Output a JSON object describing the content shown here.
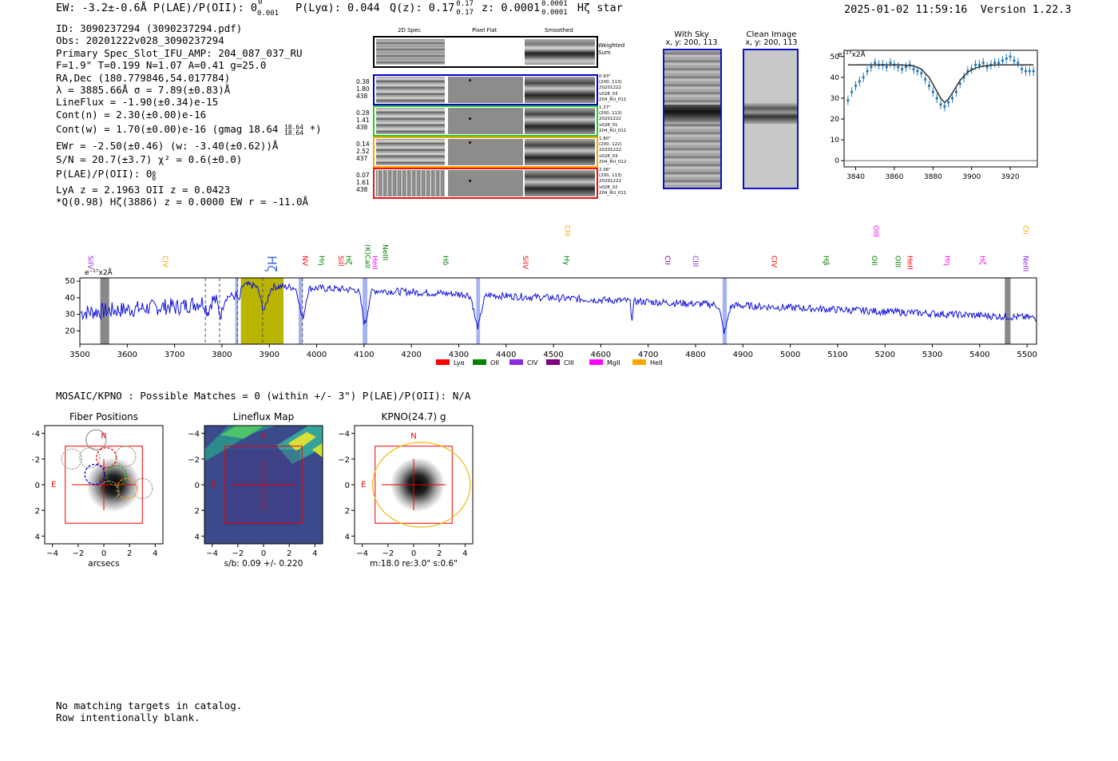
{
  "header": {
    "left_text": "EW: -3.2±-0.6Å  P(LAE)/P(OII): 0",
    "plae_sub": "0.001",
    "plae_sup": "0",
    "plya": "P(Lyα): 0.044",
    "qz": "Q(z): 0.17",
    "qz_sup": "0.17",
    "qz_sub": "0.17",
    "z": "z: 0.0001",
    "z_sup": "0.0001",
    "z_sub": "0.0001",
    "line_name": "Hζ  star",
    "timestamp": "2025-01-02 11:59:16",
    "version": "Version 1.22.3"
  },
  "info": {
    "lines": [
      "ID: 3090237294 (3090237294.pdf)",
      "Obs: 20201222v028_3090237294",
      "Primary Spec_Slot_IFU_AMP: 204_087_037_RU",
      "F=1.9\"  T=0.199  N=1.07  A=0.41  g=25.0",
      "RA,Dec (180.779846,54.017784)",
      "λ = 3885.66Å  σ = 7.89(±0.83)Å",
      "LineFlux = -1.90(±0.34)e-15",
      "Cont(n) = 2.30(±0.00)e-16",
      "Cont(w) = 1.70(±0.00)e-16 (gmag 18.64 ",
      "EWr = -2.50(±0.46) (w: -3.40(±0.62))Å",
      "S/N = 20.7(±3.7)  χ² = 0.6(±0.0)",
      "P(LAE)/P(OII): 0",
      "LyA z = 2.1963  OII z = 0.0423",
      "*Q(0.98) Hζ(3886) z = 0.0000  EW r = -11.0Å"
    ],
    "gmag_sup": "18.64",
    "gmag_sub": "18.64",
    "gmag_tail": " *)",
    "plae_sup": "0",
    "plae_sub": "0"
  },
  "cutouts": {
    "col_headers": [
      "2D Spec",
      "Pixel Flat",
      "Smoothed"
    ],
    "weighted_label": "Weighted Sum",
    "rows": [
      {
        "left": [
          "0.38",
          "1.80",
          "438"
        ],
        "right": [
          "0.93\"",
          "(200, 113)",
          "20201222",
          "v028_03",
          "204_RU_011"
        ],
        "color": "#0000cc"
      },
      {
        "left": [
          "0.28",
          "1.41",
          "438"
        ],
        "right": [
          "1.27\"",
          "(200, 113)",
          "20201222",
          "v028_01",
          "204_RU_011"
        ],
        "color": "#22cc22"
      },
      {
        "left": [
          "0.14",
          "2.52",
          "437"
        ],
        "right": [
          "1.80\"",
          "(200, 122)",
          "20201222",
          "v028_03",
          "204_RU_012"
        ],
        "color": "#ffa500"
      },
      {
        "left": [
          "0.07",
          "1.61",
          "438"
        ],
        "right": [
          "2.06\"",
          "(200, 113)",
          "20201222",
          "v028_02",
          "204_RU_011"
        ],
        "color": "#ee1111"
      }
    ]
  },
  "sky_panels": [
    {
      "title": "With Sky",
      "subtitle": "x, y: 200, 113"
    },
    {
      "title": "Clean Image",
      "subtitle": "x, y: 200, 113"
    }
  ],
  "zoom_chart": {
    "type": "scatter",
    "ylabel": "e⁻¹⁷x2Å",
    "xlim": [
      3834,
      3934
    ],
    "ylim": [
      -3,
      53
    ],
    "xticks": [
      "3840",
      "3860",
      "3880",
      "3900",
      "3920"
    ],
    "yticks": [
      "0",
      "10",
      "20",
      "30",
      "40",
      "50"
    ],
    "x": [
      3836,
      3838,
      3840,
      3842,
      3844,
      3846,
      3848,
      3850,
      3852,
      3854,
      3856,
      3858,
      3860,
      3862,
      3864,
      3866,
      3868,
      3870,
      3872,
      3874,
      3876,
      3878,
      3880,
      3882,
      3884,
      3886,
      3888,
      3890,
      3892,
      3894,
      3896,
      3898,
      3900,
      3902,
      3904,
      3906,
      3908,
      3910,
      3912,
      3914,
      3916,
      3918,
      3920,
      3922,
      3924,
      3926,
      3928,
      3930,
      3932
    ],
    "y": [
      29,
      33,
      36,
      38,
      40,
      43,
      45,
      47,
      46,
      46,
      45,
      47,
      46,
      45,
      44,
      45,
      46,
      44,
      43,
      42,
      39,
      36,
      33,
      30,
      27,
      26,
      28,
      30,
      33,
      37,
      40,
      43,
      44,
      46,
      46,
      47,
      45,
      46,
      47,
      47,
      48,
      49,
      50,
      48,
      47,
      44,
      43,
      43,
      43
    ],
    "fit_x": [
      3836,
      3846,
      3856,
      3864,
      3870,
      3874,
      3878,
      3881,
      3884,
      3886,
      3888,
      3891,
      3894,
      3898,
      3902,
      3906,
      3912,
      3920,
      3932
    ],
    "fit_y": [
      46,
      46,
      46,
      46,
      45.5,
      44,
      40,
      35,
      30,
      28,
      29.5,
      34,
      38.5,
      42.5,
      44.5,
      45.5,
      46,
      46,
      46
    ]
  },
  "spectrum_chart": {
    "type": "line",
    "ylabel": "e⁻¹⁷x2Å",
    "xlim": [
      3500,
      5520
    ],
    "ylim": [
      12,
      52
    ],
    "xticks": [
      "3500",
      "3600",
      "3700",
      "3800",
      "3900",
      "4000",
      "4100",
      "4200",
      "4300",
      "4400",
      "4500",
      "4600",
      "4700",
      "4800",
      "4900",
      "5000",
      "5100",
      "5200",
      "5300",
      "5400",
      "5500"
    ],
    "yticks": [
      "20",
      "30",
      "40",
      "50"
    ],
    "legend": [
      {
        "label": "Lyα",
        "color": "#ff0000"
      },
      {
        "label": "OII",
        "color": "#008000"
      },
      {
        "label": "CIV",
        "color": "#8a2be2"
      },
      {
        "label": "CIII",
        "color": "#800080"
      },
      {
        "label": "MgII",
        "color": "#ff00ff"
      },
      {
        "label": "HeII",
        "color": "#ffa500"
      }
    ],
    "lines": [
      {
        "label": "SiIV",
        "wave": 3513,
        "color": "#8a2be2",
        "level": 0
      },
      {
        "label": "CIV",
        "wave": 3670,
        "color": "#ffa500",
        "level": 0
      },
      {
        "label": "Hζ",
        "wave": 3886,
        "color": "#4169e1",
        "level": 2
      },
      {
        "label": "NV",
        "wave": 3965,
        "color": "#ff0000",
        "level": 0
      },
      {
        "label": "Hη",
        "wave": 4001,
        "color": "#008000",
        "level": 0
      },
      {
        "label": "SiII",
        "wave": 4041,
        "color": "#ff0000",
        "level": 0
      },
      {
        "label": "Hζ",
        "wave": 4057,
        "color": "#008000",
        "level": 0
      },
      {
        "label": "(K)CaII",
        "wave": 4098,
        "color": "#008000",
        "level": 1
      },
      {
        "label": "HeII",
        "wave": 4113,
        "color": "#ff00ff",
        "level": 0
      },
      {
        "label": "NeIII",
        "wave": 4135,
        "color": "#008000",
        "level": 1
      },
      {
        "label": "Hδ",
        "wave": 4262,
        "color": "#008000",
        "level": 0
      },
      {
        "label": "SiIV",
        "wave": 4431,
        "color": "#ff0000",
        "level": 0
      },
      {
        "label": "CIII",
        "wave": 4519,
        "color": "#ffa500",
        "level": 3
      },
      {
        "label": "Hγ",
        "wave": 4518,
        "color": "#008000",
        "level": 0
      },
      {
        "label": "CII",
        "wave": 4731,
        "color": "#800080",
        "level": 0
      },
      {
        "label": "CIII",
        "wave": 4790,
        "color": "#8a2be2",
        "level": 0
      },
      {
        "label": "CIV",
        "wave": 4956,
        "color": "#ff0000",
        "level": 0
      },
      {
        "label": "Hβ",
        "wave": 5066,
        "color": "#008000",
        "level": 0
      },
      {
        "label": "OIII",
        "wave": 5171,
        "color": "#ff00ff",
        "level": 3
      },
      {
        "label": "OII",
        "wave": 5168,
        "color": "#008000",
        "level": 0
      },
      {
        "label": "OIII",
        "wave": 5217,
        "color": "#008000",
        "level": 0
      },
      {
        "label": "HeII",
        "wave": 5243,
        "color": "#ff0000",
        "level": 0
      },
      {
        "label": "Hη",
        "wave": 5322,
        "color": "#ff00ff",
        "level": 0
      },
      {
        "label": "Hζ",
        "wave": 5396,
        "color": "#ff00ff",
        "level": 0
      },
      {
        "label": "CII",
        "wave": 5487,
        "color": "#ffa500",
        "level": 3
      },
      {
        "label": "NeIII",
        "wave": 5487,
        "color": "#8a2be2",
        "level": 0
      }
    ]
  },
  "catalog": {
    "header": "MOSAIC/KPNO : Possible Matches = 0 (within +/- 3\")  P(LAE)/P(OII): N/A",
    "panels": [
      {
        "title": "Fiber Positions",
        "xlabel": "arcsecs"
      },
      {
        "title": "Lineflux Map",
        "xlabel": "s/b: 0.09 +/- 0.220"
      },
      {
        "title": "KPNO(24.7) g",
        "xlabel": "m:18.0  re:3.0\"  s:0.6\""
      }
    ],
    "ticks": [
      "−4",
      "−2",
      "0",
      "2",
      "4"
    ],
    "north": "N",
    "east": "E"
  },
  "footer": {
    "line1": "No matching targets in catalog.",
    "line2": "Row intentionally blank."
  }
}
